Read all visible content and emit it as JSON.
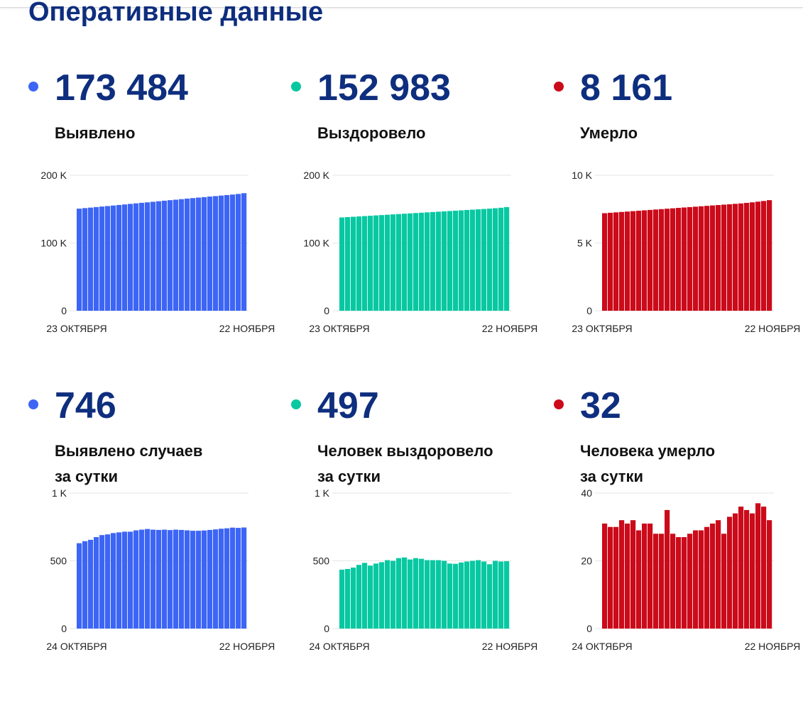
{
  "page": {
    "title": "Оперативные данные"
  },
  "colors": {
    "title": "#0e2e7e",
    "blue": "#3d65f5",
    "teal": "#08c8a2",
    "red": "#cb0a1a"
  },
  "panels": [
    {
      "color_key": "blue",
      "value": "173 484",
      "label_lines": [
        "Выявлено"
      ]
    },
    {
      "color_key": "teal",
      "value": "152 983",
      "label_lines": [
        "Выздоровело"
      ]
    },
    {
      "color_key": "red",
      "value": "8 161",
      "label_lines": [
        "Умерло"
      ]
    },
    {
      "color_key": "blue",
      "value": "746",
      "label_lines": [
        "Выявлено случаев",
        "за сутки"
      ]
    },
    {
      "color_key": "teal",
      "value": "497",
      "label_lines": [
        "Человек выздоровело",
        "за сутки"
      ]
    },
    {
      "color_key": "red",
      "value": "32",
      "label_lines": [
        "Человека умерло",
        "за сутки"
      ]
    }
  ],
  "chart_data": [
    {
      "type": "bar",
      "color_key": "blue",
      "ylim": [
        0,
        200000
      ],
      "yticks": [
        0,
        100000,
        200000
      ],
      "ytick_labels": [
        "0",
        "100 K",
        "200 K"
      ],
      "xtick_labels": [
        "23 ОКТЯБРЯ",
        "22 НОЯБРЯ"
      ],
      "grid": true,
      "values": [
        150700,
        151500,
        152200,
        153000,
        153800,
        154500,
        155300,
        156100,
        156900,
        157700,
        158500,
        159300,
        160000,
        160800,
        161600,
        162400,
        163200,
        163900,
        164700,
        165500,
        166300,
        167000,
        167700,
        168500,
        169200,
        170000,
        170700,
        171500,
        172400,
        173484
      ]
    },
    {
      "type": "bar",
      "color_key": "teal",
      "ylim": [
        0,
        200000
      ],
      "yticks": [
        0,
        100000,
        200000
      ],
      "ytick_labels": [
        "0",
        "100 K",
        "200 K"
      ],
      "xtick_labels": [
        "23 ОКТЯБРЯ",
        "22 НОЯБРЯ"
      ],
      "grid": true,
      "values": [
        137700,
        138200,
        138700,
        139200,
        139700,
        140200,
        140700,
        141200,
        141700,
        142200,
        142700,
        143200,
        143700,
        144200,
        144700,
        145200,
        145700,
        146200,
        146700,
        147200,
        147700,
        148200,
        148700,
        149200,
        149700,
        150200,
        150700,
        151300,
        152000,
        152983
      ]
    },
    {
      "type": "bar",
      "color_key": "red",
      "ylim": [
        0,
        10000
      ],
      "yticks": [
        0,
        5000,
        10000
      ],
      "ytick_labels": [
        "0",
        "5 K",
        "10 K"
      ],
      "xtick_labels": [
        "23 ОКТЯБРЯ",
        "22 НОЯБРЯ"
      ],
      "grid": true,
      "values": [
        7200,
        7230,
        7260,
        7290,
        7320,
        7350,
        7380,
        7410,
        7440,
        7470,
        7500,
        7530,
        7560,
        7590,
        7620,
        7650,
        7680,
        7710,
        7740,
        7770,
        7800,
        7830,
        7860,
        7890,
        7920,
        7960,
        8000,
        8050,
        8100,
        8161
      ]
    },
    {
      "type": "bar",
      "color_key": "blue",
      "ylim": [
        0,
        1000
      ],
      "yticks": [
        0,
        500,
        1000
      ],
      "ytick_labels": [
        "0",
        "500",
        "1 K"
      ],
      "xtick_labels": [
        "24 ОКТЯБРЯ",
        "22 НОЯБРЯ"
      ],
      "grid": true,
      "values": [
        630,
        645,
        655,
        675,
        690,
        695,
        705,
        710,
        715,
        715,
        725,
        730,
        735,
        730,
        728,
        730,
        727,
        730,
        728,
        725,
        722,
        722,
        724,
        728,
        732,
        737,
        740,
        745,
        743,
        746
      ]
    },
    {
      "type": "bar",
      "color_key": "teal",
      "ylim": [
        0,
        1000
      ],
      "yticks": [
        0,
        500,
        1000
      ],
      "ytick_labels": [
        "0",
        "500",
        "1 K"
      ],
      "xtick_labels": [
        "24 ОКТЯБРЯ",
        "22 НОЯБРЯ"
      ],
      "grid": true,
      "values": [
        435,
        440,
        450,
        470,
        485,
        465,
        480,
        490,
        505,
        500,
        520,
        525,
        510,
        520,
        515,
        505,
        505,
        505,
        500,
        480,
        478,
        488,
        495,
        500,
        505,
        495,
        475,
        500,
        495,
        497
      ]
    },
    {
      "type": "bar",
      "color_key": "red",
      "ylim": [
        0,
        40
      ],
      "yticks": [
        0,
        20,
        40
      ],
      "ytick_labels": [
        "0",
        "20",
        "40"
      ],
      "xtick_labels": [
        "24 ОКТЯБРЯ",
        "22 НОЯБРЯ"
      ],
      "grid": true,
      "values": [
        31,
        30,
        30,
        32,
        31,
        32,
        29,
        31,
        31,
        28,
        28,
        35,
        28,
        27,
        27,
        28,
        29,
        29,
        30,
        31,
        32,
        28,
        33,
        34,
        36,
        35,
        34,
        37,
        36,
        32
      ]
    }
  ]
}
